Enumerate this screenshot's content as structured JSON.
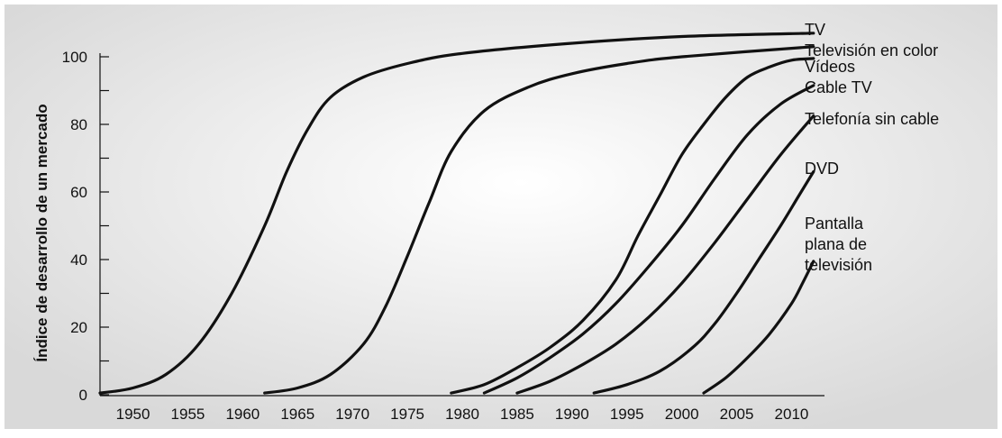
{
  "chart_data": {
    "type": "line",
    "title": "",
    "xlabel": "",
    "ylabel": "Índice de desarrollo de un mercado",
    "xlim": [
      1947,
      2013
    ],
    "ylim": [
      0,
      100
    ],
    "x_ticks": [
      "1950",
      "1955",
      "1960",
      "1965",
      "1970",
      "1975",
      "1980",
      "1985",
      "1990",
      "1995",
      "2000",
      "2005",
      "2010"
    ],
    "y_ticks": [
      "0",
      "20",
      "40",
      "60",
      "80",
      "100"
    ],
    "y_minor_ticks": [
      10,
      30,
      50,
      70,
      90
    ],
    "background": "#ececec",
    "line_color": "#111111",
    "grid": false,
    "series": [
      {
        "name": "TV",
        "label_lines": [
          "TV"
        ],
        "x": [
          1947,
          1950,
          1953,
          1956,
          1959,
          1962,
          1964,
          1966,
          1968,
          1971,
          1975,
          1980,
          1990,
          2000,
          2012
        ],
        "y": [
          0.5,
          2,
          6,
          15,
          30,
          50,
          66,
          79,
          88,
          94,
          98,
          101,
          104,
          106,
          107
        ]
      },
      {
        "name": "Televisión en color",
        "label_lines": [
          "Televisión en color"
        ],
        "x": [
          1962,
          1965,
          1968,
          1971,
          1973,
          1975,
          1977,
          1979,
          1982,
          1986,
          1990,
          1995,
          2000,
          2012
        ],
        "y": [
          0.5,
          2,
          6,
          15,
          26,
          41,
          57,
          72,
          84,
          91,
          95,
          98,
          100,
          103
        ]
      },
      {
        "name": "Vídeos",
        "label_lines": [
          "Vídeos"
        ],
        "x": [
          1979,
          1982,
          1985,
          1988,
          1991,
          1994,
          1996,
          1998,
          2000,
          2002,
          2004,
          2006,
          2008,
          2010,
          2012
        ],
        "y": [
          0.5,
          3,
          8,
          14,
          22,
          34,
          47,
          59,
          71,
          80,
          88,
          94,
          97,
          99,
          99.5
        ]
      },
      {
        "name": "Cable TV",
        "label_lines": [
          "Cable TV"
        ],
        "x": [
          1982,
          1985,
          1988,
          1991,
          1994,
          1997,
          2000,
          2003,
          2006,
          2009,
          2012
        ],
        "y": [
          0.5,
          5,
          11,
          18,
          27,
          38,
          50,
          64,
          77,
          86,
          91.5
        ]
      },
      {
        "name": "Telefonía sin cable",
        "label_lines": [
          "Telefonía sin cable"
        ],
        "x": [
          1985,
          1988,
          1991,
          1994,
          1997,
          2000,
          2003,
          2006,
          2009,
          2012
        ],
        "y": [
          0.5,
          4,
          9,
          15,
          23,
          33,
          45,
          58,
          71,
          82.5
        ]
      },
      {
        "name": "DVD",
        "label_lines": [
          "DVD"
        ],
        "x": [
          1992,
          1995,
          1998,
          2001,
          2003,
          2005,
          2007,
          2009,
          2010.5,
          2012
        ],
        "y": [
          0.5,
          3,
          7,
          14,
          21,
          30,
          40,
          50,
          58,
          66
        ]
      },
      {
        "name": "Pantalla plana de televisión",
        "label_lines": [
          "Pantalla",
          "plana de",
          "televisión"
        ],
        "x": [
          2002,
          2004,
          2006,
          2008,
          2010,
          2011,
          2012
        ],
        "y": [
          0.5,
          5,
          11,
          18,
          27,
          33,
          39.5
        ]
      }
    ]
  }
}
